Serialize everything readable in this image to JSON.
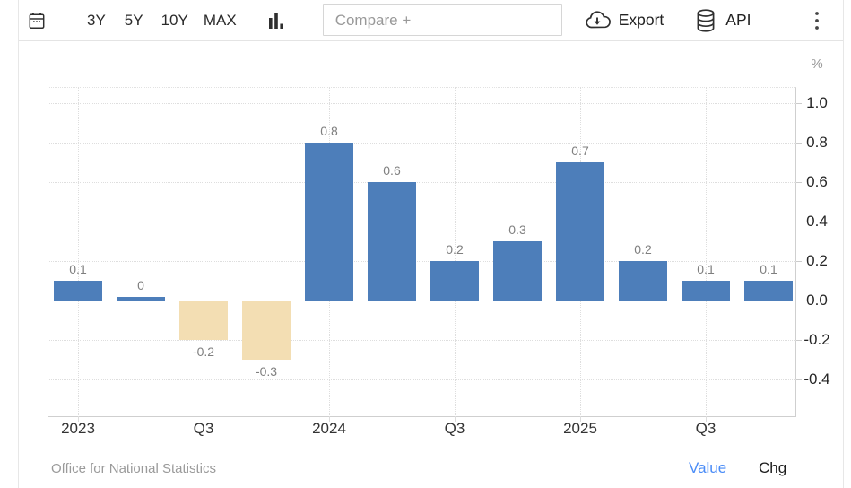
{
  "toolbar": {
    "periods": [
      "3Y",
      "5Y",
      "10Y",
      "MAX"
    ],
    "compare_placeholder": "Compare +",
    "export_label": "Export",
    "api_label": "API",
    "icons": {
      "calendar": "calendar-icon",
      "chart_type": "bar-chart-icon",
      "export": "cloud-download-icon",
      "api": "database-icon",
      "menu": "kebab-menu-icon"
    }
  },
  "chart_data": {
    "type": "bar",
    "unit": "%",
    "categories": [
      "2023-Q1",
      "2023-Q2",
      "2023-Q3",
      "2023-Q4",
      "2024-Q1",
      "2024-Q2",
      "2024-Q3",
      "2024-Q4",
      "2025-Q1",
      "2025-Q2",
      "2025-Q3",
      "2025-Q4"
    ],
    "values": [
      0.1,
      0,
      -0.2,
      -0.3,
      0.8,
      0.6,
      0.2,
      0.3,
      0.7,
      0.2,
      0.1,
      0.1
    ],
    "value_labels": [
      "0.1",
      "0",
      "-0.2",
      "-0.3",
      "0.8",
      "0.6",
      "0.2",
      "0.3",
      "0.7",
      "0.2",
      "0.1",
      "0.1"
    ],
    "x_tick_labels": [
      "2023",
      "Q3",
      "2024",
      "Q3",
      "2025",
      "Q3"
    ],
    "y_tick_labels": [
      "1.0",
      "0.8",
      "0.6",
      "0.4",
      "0.2",
      "0.0",
      "-0.2",
      "-0.4"
    ],
    "y_tick_values": [
      1.0,
      0.8,
      0.6,
      0.4,
      0.2,
      0.0,
      -0.2,
      -0.4
    ],
    "ylim": [
      -0.59,
      1.08
    ],
    "grid": "dotted",
    "legend_position": "none",
    "title": "",
    "xlabel": "",
    "ylabel": "%",
    "colors": {
      "positive": "#4d7eba",
      "negative": "#f3deb3"
    }
  },
  "footer": {
    "source": "Office for National Statistics",
    "value_label": "Value",
    "chg_label": "Chg"
  }
}
